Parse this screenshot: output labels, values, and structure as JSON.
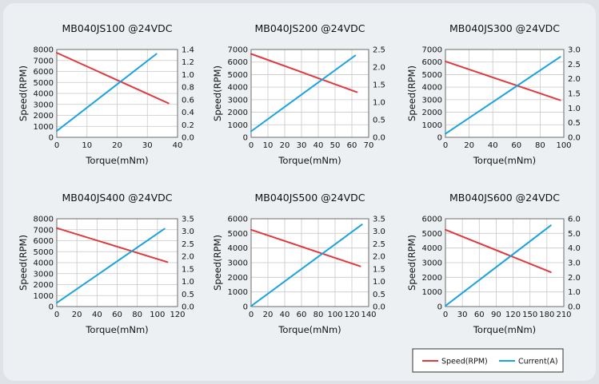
{
  "chart_data": [
    {
      "type": "line",
      "title": "MB040JS100 @24VDC",
      "xlabel": "Torque(mNm)",
      "ylabel": "Speed(RPM)",
      "xlim": [
        0,
        40
      ],
      "xticks": [
        0,
        10,
        20,
        30,
        40
      ],
      "ylim": [
        0,
        8000
      ],
      "yticks": [
        0,
        1000,
        2000,
        3000,
        4000,
        5000,
        6000,
        7000,
        8000
      ],
      "y2lim": [
        0,
        1.4
      ],
      "y2ticks": [
        "0.0",
        "0.2",
        "0.4",
        "0.6",
        "0.8",
        "1.0",
        "1.2",
        "1.4"
      ],
      "series": [
        {
          "name": "Speed(RPM)",
          "axis": "left",
          "color": "#e0393e",
          "x": [
            0,
            37
          ],
          "y": [
            7700,
            3100
          ]
        },
        {
          "name": "Current(A)",
          "axis": "right",
          "color": "#1aa3e0",
          "x": [
            0,
            33
          ],
          "y": [
            0.1,
            1.33
          ]
        }
      ]
    },
    {
      "type": "line",
      "title": "MB040JS200 @24VDC",
      "xlabel": "Torque(mNm)",
      "ylabel": "Speed(RPM)",
      "xlim": [
        0,
        70
      ],
      "xticks": [
        0,
        10,
        20,
        30,
        40,
        50,
        60,
        70
      ],
      "ylim": [
        0,
        7000
      ],
      "yticks": [
        0,
        1000,
        2000,
        3000,
        4000,
        5000,
        6000,
        7000
      ],
      "y2lim": [
        0,
        2.5
      ],
      "y2ticks": [
        "0.0",
        "0.5",
        "1.0",
        "1.5",
        "2.0",
        "2.5"
      ],
      "series": [
        {
          "name": "Speed(RPM)",
          "axis": "left",
          "color": "#e0393e",
          "x": [
            0,
            63
          ],
          "y": [
            6650,
            3600
          ]
        },
        {
          "name": "Current(A)",
          "axis": "right",
          "color": "#1aa3e0",
          "x": [
            0,
            62
          ],
          "y": [
            0.17,
            2.33
          ]
        }
      ]
    },
    {
      "type": "line",
      "title": "MB040JS300 @24VDC",
      "xlabel": "Torque(mNm)",
      "ylabel": "Speed(RPM)",
      "xlim": [
        0,
        100
      ],
      "xticks": [
        0,
        20,
        40,
        60,
        80,
        100
      ],
      "ylim": [
        0,
        7000
      ],
      "yticks": [
        0,
        1000,
        2000,
        3000,
        4000,
        5000,
        6000,
        7000
      ],
      "y2lim": [
        0,
        3.0
      ],
      "y2ticks": [
        "0.0",
        "0.5",
        "1.0",
        "1.5",
        "2.0",
        "2.5",
        "3.0"
      ],
      "series": [
        {
          "name": "Speed(RPM)",
          "axis": "left",
          "color": "#e0393e",
          "x": [
            0,
            97
          ],
          "y": [
            6050,
            2950
          ]
        },
        {
          "name": "Current(A)",
          "axis": "right",
          "color": "#1aa3e0",
          "x": [
            0,
            97
          ],
          "y": [
            0.12,
            2.75
          ]
        }
      ]
    },
    {
      "type": "line",
      "title": "MB040JS400 @24VDC",
      "xlabel": "Torque(mNm)",
      "ylabel": "Speed(RPM)",
      "xlim": [
        0,
        120
      ],
      "xticks": [
        0,
        20,
        40,
        60,
        80,
        100,
        120
      ],
      "ylim": [
        0,
        8000
      ],
      "yticks": [
        0,
        1000,
        2000,
        3000,
        4000,
        5000,
        6000,
        7000,
        8000
      ],
      "y2lim": [
        0,
        3.5
      ],
      "y2ticks": [
        "0.0",
        "0.5",
        "1.0",
        "1.5",
        "2.0",
        "2.5",
        "3.0",
        "3.5"
      ],
      "series": [
        {
          "name": "Speed(RPM)",
          "axis": "left",
          "color": "#e0393e",
          "x": [
            0,
            110
          ],
          "y": [
            7150,
            4050
          ]
        },
        {
          "name": "Current(A)",
          "axis": "right",
          "color": "#1aa3e0",
          "x": [
            0,
            107
          ],
          "y": [
            0.15,
            3.1
          ]
        }
      ]
    },
    {
      "type": "line",
      "title": "MB040JS500 @24VDC",
      "xlabel": "Torque(mNm)",
      "ylabel": "Speed(RPM)",
      "xlim": [
        0,
        140
      ],
      "xticks": [
        0,
        20,
        40,
        60,
        80,
        100,
        120,
        140
      ],
      "ylim": [
        0,
        6000
      ],
      "yticks": [
        0,
        1000,
        2000,
        3000,
        4000,
        5000,
        6000
      ],
      "y2lim": [
        0,
        3.5
      ],
      "y2ticks": [
        "0.0",
        "0.5",
        "1.0",
        "1.5",
        "2.0",
        "2.5",
        "3.0",
        "3.5"
      ],
      "series": [
        {
          "name": "Speed(RPM)",
          "axis": "left",
          "color": "#e0393e",
          "x": [
            0,
            130
          ],
          "y": [
            5250,
            2750
          ]
        },
        {
          "name": "Current(A)",
          "axis": "right",
          "color": "#1aa3e0",
          "x": [
            0,
            132
          ],
          "y": [
            0.02,
            3.27
          ]
        }
      ]
    },
    {
      "type": "line",
      "title": "MB040JS600 @24VDC",
      "xlabel": "Torque(mNm)",
      "ylabel": "Speed(RPM)",
      "xlim": [
        0,
        210
      ],
      "xticks": [
        0,
        30,
        60,
        90,
        120,
        150,
        180,
        210
      ],
      "ylim": [
        0,
        6000
      ],
      "yticks": [
        0,
        1000,
        2000,
        3000,
        4000,
        5000,
        6000
      ],
      "y2lim": [
        0,
        6.0
      ],
      "y2ticks": [
        "0.0",
        "1.0",
        "2.0",
        "3.0",
        "4.0",
        "5.0",
        "6.0"
      ],
      "series": [
        {
          "name": "Speed(RPM)",
          "axis": "left",
          "color": "#e0393e",
          "x": [
            0,
            187
          ],
          "y": [
            5250,
            2350
          ]
        },
        {
          "name": "Current(A)",
          "axis": "right",
          "color": "#1aa3e0",
          "x": [
            0,
            187
          ],
          "y": [
            0.05,
            5.55
          ]
        }
      ]
    }
  ],
  "legend": {
    "placement": "bottom-right",
    "items": [
      {
        "label": "Speed(RPM)",
        "color": "#e0393e"
      },
      {
        "label": "Current(A)",
        "color": "#1aa3e0"
      }
    ]
  }
}
